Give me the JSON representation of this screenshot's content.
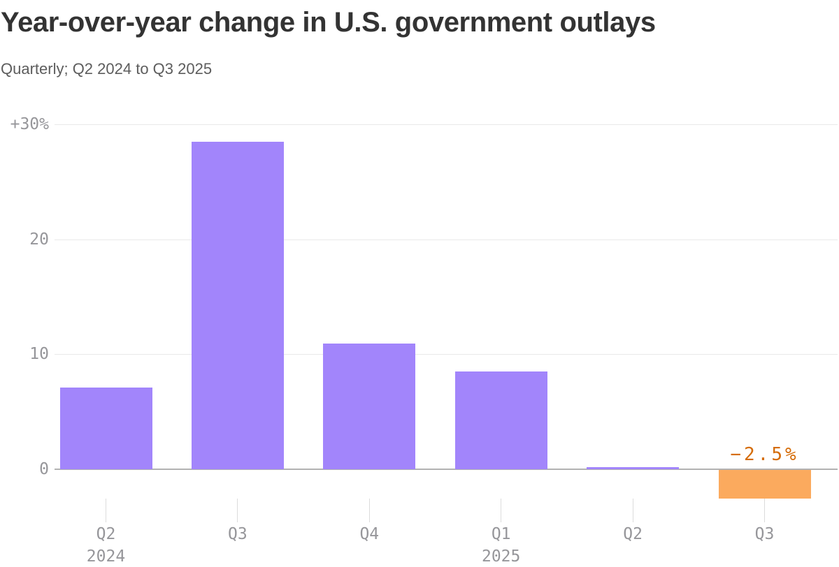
{
  "header": {
    "title": "Year-over-year change in U.S. government outlays",
    "subtitle": "Quarterly; Q2 2024 to Q3 2025"
  },
  "chart_data": {
    "type": "bar",
    "title": "Year-over-year change in U.S. government outlays",
    "subtitle": "Quarterly; Q2 2024 to Q3 2025",
    "categories": [
      "Q2",
      "Q3",
      "Q4",
      "Q1",
      "Q2",
      "Q3"
    ],
    "category_years": [
      "2024",
      "",
      "",
      "2025",
      "",
      ""
    ],
    "values": [
      7.1,
      28.5,
      10.9,
      8.5,
      0.2,
      -2.5
    ],
    "unit_suffix": "%",
    "bar_colors": [
      "#a285fb",
      "#a285fb",
      "#a285fb",
      "#a285fb",
      "#a285fb",
      "#fbaa5e"
    ],
    "annotations": [
      {
        "index": 5,
        "text": "−2.5%",
        "color": "#d56c08"
      }
    ],
    "y_ticks": [
      {
        "label": "+30%",
        "value": 30
      },
      {
        "label": "20",
        "value": 20
      },
      {
        "label": "10",
        "value": 10
      },
      {
        "label": "0",
        "value": 0
      }
    ],
    "ylim": [
      -4,
      32
    ],
    "grid": "horizontal",
    "legend": "none",
    "colors": {
      "positive_bar": "#a285fb",
      "negative_bar": "#fbaa5e",
      "annotation_text": "#d56c08",
      "gridline": "#e9e9e9",
      "zero_line": "#b2b2b2",
      "axis_tick_line": "#dcdcdc",
      "axis_text": "#96969a",
      "title_text": "#333333",
      "subtitle_text": "#5d5d5d",
      "background": "#ffffff"
    }
  }
}
